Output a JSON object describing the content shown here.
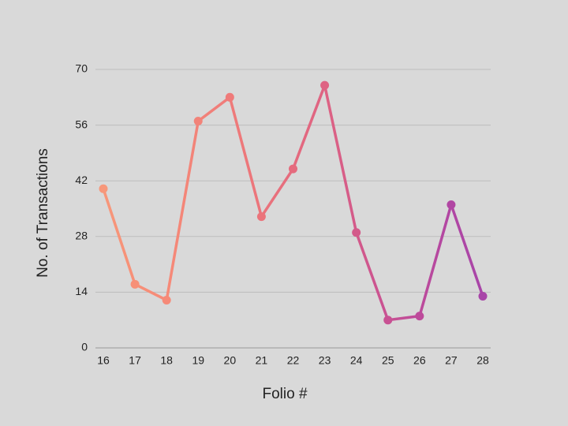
{
  "chart_data": {
    "type": "line",
    "x_label": "Folio #",
    "y_label": "No. of Transactions",
    "x": [
      16,
      17,
      18,
      19,
      20,
      21,
      22,
      23,
      24,
      25,
      26,
      27,
      28
    ],
    "series": [
      {
        "values": [
          40,
          16,
          12,
          57,
          63,
          33,
          45,
          66,
          29,
          7,
          8,
          36,
          13
        ],
        "colors": [
          "#f7977a",
          "#f79078",
          "#f68a78",
          "#f28379",
          "#ef7b7a",
          "#eb747b",
          "#e56b7e",
          "#de6383",
          "#d35a8a",
          "#c85193",
          "#bd4b9b",
          "#b146a3",
          "#a845a8"
        ]
      }
    ],
    "xlim": [
      16,
      28
    ],
    "xticks": [
      16,
      17,
      18,
      19,
      20,
      21,
      22,
      23,
      24,
      25,
      26,
      27,
      28
    ],
    "ylim": [
      0,
      70
    ],
    "yticks": [
      0,
      14,
      28,
      42,
      56,
      70
    ],
    "grid": true
  }
}
